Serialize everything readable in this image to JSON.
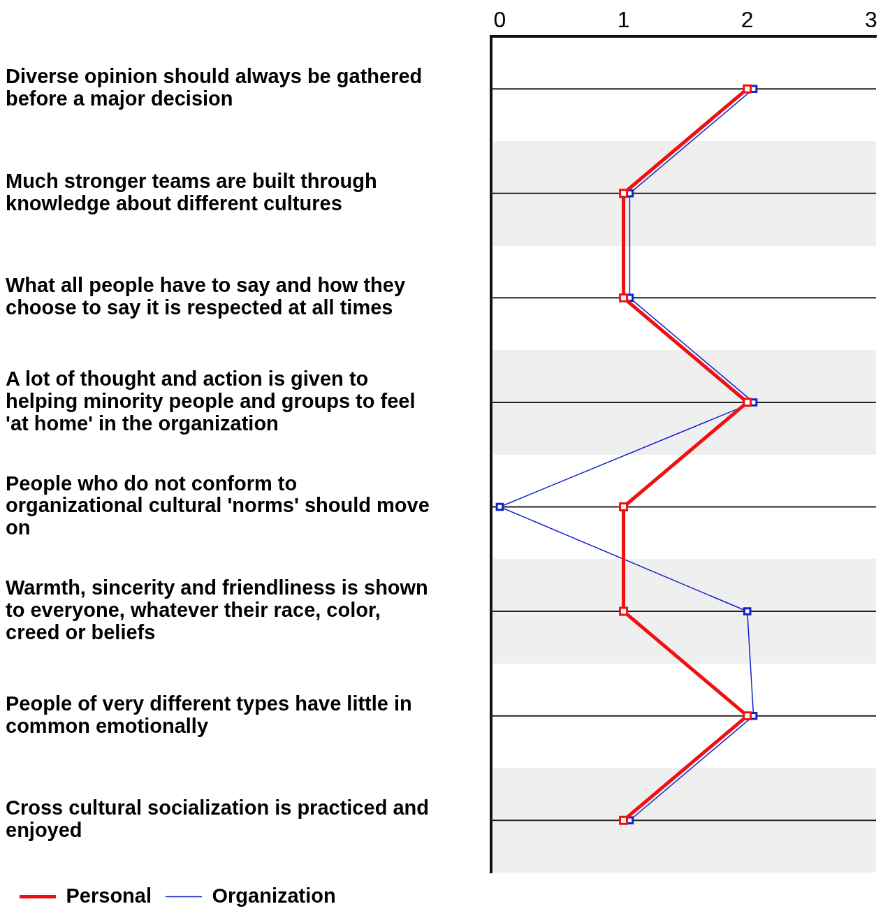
{
  "chart_data": {
    "type": "line",
    "orientation": "horizontal",
    "categories": [
      "Diverse opinion should always be gathered before a major decision",
      "Much stronger teams are built through knowledge about different cultures",
      "What all people have to say and how they choose to say it is respected at all times",
      "A lot of thought and action is given to helping minority people and groups to feel 'at home' in the organization",
      "People who do not conform to organizational cultural 'norms' should move on",
      "Warmth, sincerity and friendliness is shown to everyone, whatever their race, color, creed or beliefs",
      "People of very different types have little in common emotionally",
      "Cross cultural socialization is practiced and enjoyed"
    ],
    "series": [
      {
        "name": "Personal",
        "color": "#ee1111",
        "values": [
          2,
          1,
          1,
          2,
          1,
          1,
          2,
          1
        ]
      },
      {
        "name": "Organization",
        "color": "#1122cc",
        "values": [
          2.05,
          1.05,
          1.05,
          2.05,
          0,
          2,
          2.05,
          1.05
        ]
      }
    ],
    "xlim": [
      -0.07,
      3.04
    ],
    "xticks": [
      0,
      1,
      2,
      3
    ],
    "grid": "y",
    "legend": "bottom left",
    "marker": "square",
    "line_style": "solid"
  }
}
